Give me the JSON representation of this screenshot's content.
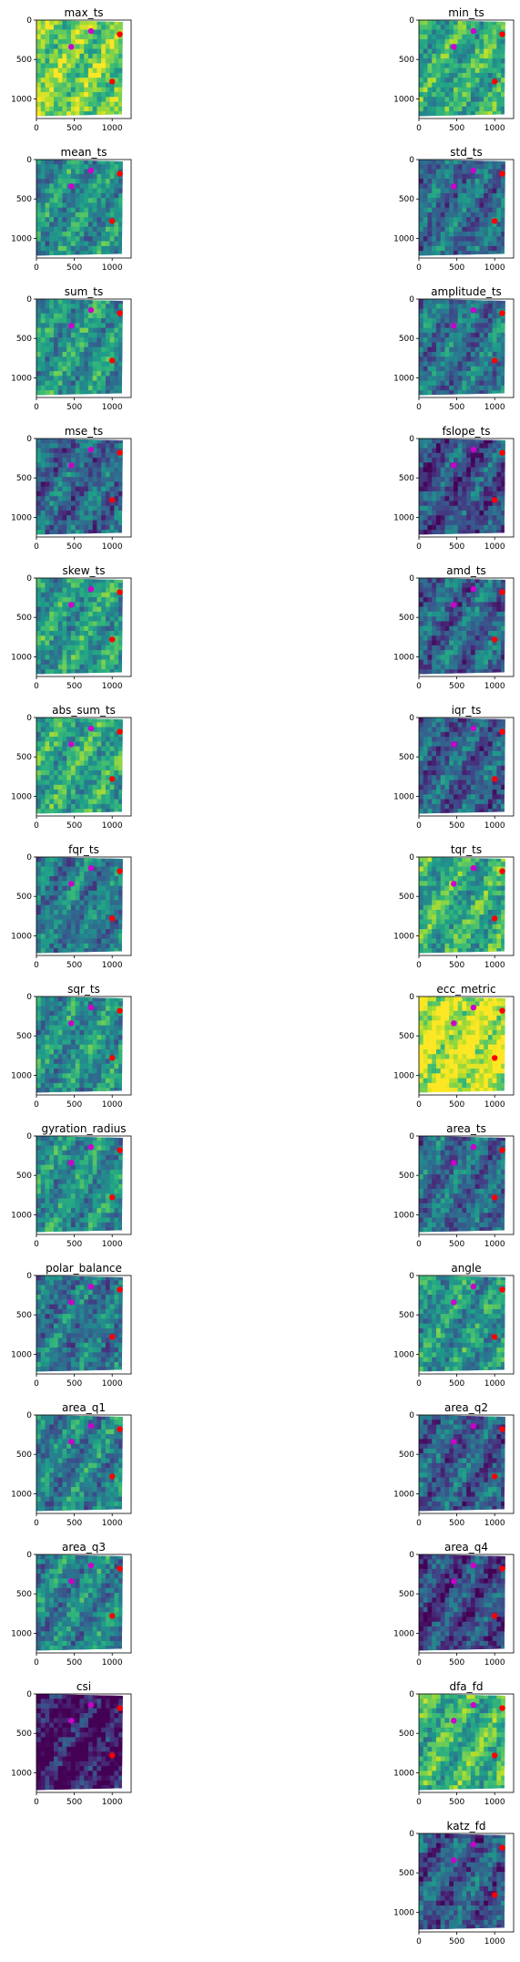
{
  "chart_data": {
    "type": "heatmap",
    "grid": {
      "rows": 14,
      "cols": 2
    },
    "xlim": [
      0,
      1250
    ],
    "ylim": [
      1250,
      0
    ],
    "xticks": [
      0,
      500,
      1000
    ],
    "yticks": [
      0,
      500,
      1000
    ],
    "colormap": "viridis",
    "markers": [
      {
        "color": "#ff0000",
        "x": 1100,
        "y": 180
      },
      {
        "color": "#ff0000",
        "x": 1000,
        "y": 780
      },
      {
        "color": "#cc00cc",
        "x": 720,
        "y": 140
      },
      {
        "color": "#cc00cc",
        "x": 460,
        "y": 340
      }
    ],
    "panels": [
      {
        "title": "max_ts",
        "row": 0,
        "col": 0,
        "level": 0.78
      },
      {
        "title": "min_ts",
        "row": 0,
        "col": 1,
        "level": 0.62
      },
      {
        "title": "mean_ts",
        "row": 1,
        "col": 0,
        "level": 0.5
      },
      {
        "title": "std_ts",
        "row": 1,
        "col": 1,
        "level": 0.35
      },
      {
        "title": "sum_ts",
        "row": 2,
        "col": 0,
        "level": 0.52
      },
      {
        "title": "amplitude_ts",
        "row": 2,
        "col": 1,
        "level": 0.38
      },
      {
        "title": "mse_ts",
        "row": 3,
        "col": 0,
        "level": 0.33
      },
      {
        "title": "fslope_ts",
        "row": 3,
        "col": 1,
        "level": 0.25
      },
      {
        "title": "skew_ts",
        "row": 4,
        "col": 0,
        "level": 0.55
      },
      {
        "title": "amd_ts",
        "row": 4,
        "col": 1,
        "level": 0.32
      },
      {
        "title": "abs_sum_ts",
        "row": 5,
        "col": 0,
        "level": 0.6
      },
      {
        "title": "iqr_ts",
        "row": 5,
        "col": 1,
        "level": 0.3
      },
      {
        "title": "fqr_ts",
        "row": 6,
        "col": 0,
        "level": 0.42
      },
      {
        "title": "tqr_ts",
        "row": 6,
        "col": 1,
        "level": 0.62
      },
      {
        "title": "sqr_ts",
        "row": 7,
        "col": 0,
        "level": 0.5
      },
      {
        "title": "ecc_metric",
        "row": 7,
        "col": 1,
        "level": 0.92
      },
      {
        "title": "gyration_radius",
        "row": 8,
        "col": 0,
        "level": 0.5
      },
      {
        "title": "area_ts",
        "row": 8,
        "col": 1,
        "level": 0.35
      },
      {
        "title": "polar_balance",
        "row": 9,
        "col": 0,
        "level": 0.4
      },
      {
        "title": "angle",
        "row": 9,
        "col": 1,
        "level": 0.52
      },
      {
        "title": "area_q1",
        "row": 10,
        "col": 0,
        "level": 0.45
      },
      {
        "title": "area_q2",
        "row": 10,
        "col": 1,
        "level": 0.3
      },
      {
        "title": "area_q3",
        "row": 11,
        "col": 0,
        "level": 0.45
      },
      {
        "title": "area_q4",
        "row": 11,
        "col": 1,
        "level": 0.22
      },
      {
        "title": "csi",
        "row": 12,
        "col": 0,
        "level": 0.05
      },
      {
        "title": "dfa_fd",
        "row": 12,
        "col": 1,
        "level": 0.65
      },
      {
        "title": "katz_fd",
        "row": 13,
        "col": 1,
        "level": 0.28
      }
    ]
  }
}
